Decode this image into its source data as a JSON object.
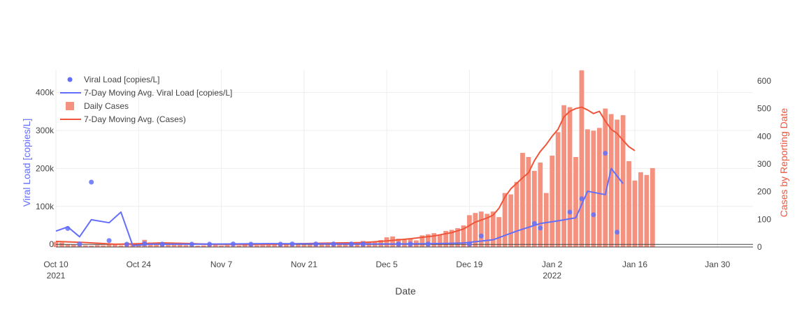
{
  "chart_data": {
    "type": "bar",
    "x_axis": {
      "title": "Date",
      "range": [
        "2021-10-10",
        "2022-02-05"
      ],
      "ticks": [
        {
          "date": "2021-10-10",
          "label": "Oct 10",
          "sublabel": "2021"
        },
        {
          "date": "2021-10-24",
          "label": "Oct 24",
          "sublabel": ""
        },
        {
          "date": "2021-11-07",
          "label": "Nov 7",
          "sublabel": ""
        },
        {
          "date": "2021-11-21",
          "label": "Nov 21",
          "sublabel": ""
        },
        {
          "date": "2021-12-05",
          "label": "Dec 5",
          "sublabel": ""
        },
        {
          "date": "2021-12-19",
          "label": "Dec 19",
          "sublabel": ""
        },
        {
          "date": "2022-01-02",
          "label": "Jan 2",
          "sublabel": "2022"
        },
        {
          "date": "2022-01-16",
          "label": "Jan 16",
          "sublabel": ""
        },
        {
          "date": "2022-01-30",
          "label": "Jan 30",
          "sublabel": ""
        }
      ]
    },
    "y_left": {
      "title": "Viral Load [copies/L]",
      "range": [
        -7000,
        460000
      ],
      "ticks": [
        {
          "value": 0,
          "label": "0"
        },
        {
          "value": 100000,
          "label": "100k"
        },
        {
          "value": 200000,
          "label": "200k"
        },
        {
          "value": 300000,
          "label": "300k"
        },
        {
          "value": 400000,
          "label": "400k"
        }
      ],
      "color": "#636efa"
    },
    "y_right": {
      "title": "Cases by Reporting Date",
      "range": [
        0,
        640
      ],
      "ticks": [
        {
          "value": 0,
          "label": "0"
        },
        {
          "value": 100,
          "label": "100"
        },
        {
          "value": 200,
          "label": "200"
        },
        {
          "value": 300,
          "label": "300"
        },
        {
          "value": 400,
          "label": "400"
        },
        {
          "value": 500,
          "label": "500"
        },
        {
          "value": 600,
          "label": "600"
        }
      ],
      "color": "#ef553b"
    },
    "grid": true,
    "legend_position": "top-left",
    "legend": [
      {
        "name": "Viral Load [copies/L]",
        "symbol": "dot",
        "color": "#636efa"
      },
      {
        "name": "7-Day Moving Avg. Viral Load [copies/L]",
        "symbol": "line",
        "color": "#636efa"
      },
      {
        "name": "Daily Cases",
        "symbol": "bar",
        "color": "#f4917f"
      },
      {
        "name": "7-Day Moving Avg. (Cases)",
        "symbol": "line",
        "color": "#ef553b"
      }
    ],
    "colors": {
      "viral": "#636efa",
      "cases_bar": "#f4917f",
      "cases_line": "#ef553b",
      "grid": "#eeeeee",
      "zeroline": "#444444"
    },
    "series": [
      {
        "name": "Daily Cases",
        "type": "bar",
        "axis": "right",
        "x_start": "2021-10-10",
        "values": [
          19,
          16,
          10,
          8,
          7,
          6,
          5,
          7,
          6,
          9,
          8,
          6,
          15,
          8,
          12,
          26,
          10,
          11,
          12,
          13,
          8,
          10,
          7,
          6,
          5,
          6,
          7,
          8,
          5,
          6,
          4,
          5,
          8,
          9,
          6,
          7,
          10,
          9,
          12,
          10,
          8,
          11,
          12,
          14,
          13,
          12,
          15,
          16,
          17,
          14,
          16,
          18,
          22,
          20,
          18,
          25,
          35,
          38,
          30,
          28,
          32,
          24,
          42,
          46,
          50,
          44,
          58,
          62,
          68,
          78,
          115,
          123,
          128,
          120,
          128,
          108,
          195,
          190,
          235,
          340,
          325,
          275,
          305,
          195,
          330,
          415,
          512,
          505,
          325,
          638,
          425,
          420,
          430,
          500,
          480,
          460,
          476,
          310,
          240,
          270,
          260,
          285
        ]
      },
      {
        "name": "7-Day Moving Avg. (Cases)",
        "type": "line",
        "axis": "right",
        "points": [
          [
            "2021-10-10",
            20
          ],
          [
            "2021-10-14",
            17
          ],
          [
            "2021-10-17",
            14
          ],
          [
            "2021-10-20",
            10
          ],
          [
            "2021-10-24",
            12
          ],
          [
            "2021-10-28",
            15
          ],
          [
            "2021-11-01",
            13
          ],
          [
            "2021-11-05",
            10
          ],
          [
            "2021-11-08",
            9
          ],
          [
            "2021-11-12",
            9
          ],
          [
            "2021-11-16",
            10
          ],
          [
            "2021-11-20",
            12
          ],
          [
            "2021-11-24",
            14
          ],
          [
            "2021-11-28",
            15
          ],
          [
            "2021-12-01",
            16
          ],
          [
            "2021-12-05",
            22
          ],
          [
            "2021-12-09",
            30
          ],
          [
            "2021-12-13",
            40
          ],
          [
            "2021-12-16",
            52
          ],
          [
            "2021-12-18",
            65
          ],
          [
            "2021-12-20",
            90
          ],
          [
            "2021-12-22",
            105
          ],
          [
            "2021-12-23",
            115
          ],
          [
            "2021-12-24",
            140
          ],
          [
            "2021-12-25",
            180
          ],
          [
            "2021-12-26",
            210
          ],
          [
            "2021-12-28",
            250
          ],
          [
            "2021-12-29",
            268
          ],
          [
            "2021-12-30",
            312
          ],
          [
            "2021-12-31",
            345
          ],
          [
            "2022-01-01",
            370
          ],
          [
            "2022-01-02",
            400
          ],
          [
            "2022-01-03",
            425
          ],
          [
            "2022-01-04",
            470
          ],
          [
            "2022-01-05",
            490
          ],
          [
            "2022-01-06",
            500
          ],
          [
            "2022-01-07",
            505
          ],
          [
            "2022-01-08",
            495
          ],
          [
            "2022-01-09",
            482
          ],
          [
            "2022-01-10",
            490
          ],
          [
            "2022-01-11",
            455
          ],
          [
            "2022-01-12",
            425
          ],
          [
            "2022-01-13",
            410
          ],
          [
            "2022-01-14",
            385
          ],
          [
            "2022-01-15",
            362
          ],
          [
            "2022-01-16",
            348
          ]
        ]
      },
      {
        "name": "Viral Load [copies/L]",
        "type": "scatter",
        "axis": "left",
        "points": [
          [
            "2021-10-12",
            42000
          ],
          [
            "2021-10-14",
            1000
          ],
          [
            "2021-10-16",
            164000
          ],
          [
            "2021-10-19",
            10000
          ],
          [
            "2021-10-22",
            500
          ],
          [
            "2021-10-25",
            2000
          ],
          [
            "2021-10-28",
            500
          ],
          [
            "2021-11-02",
            500
          ],
          [
            "2021-11-05",
            500
          ],
          [
            "2021-11-09",
            1000
          ],
          [
            "2021-11-12",
            500
          ],
          [
            "2021-11-17",
            500
          ],
          [
            "2021-11-19",
            1000
          ],
          [
            "2021-11-23",
            1000
          ],
          [
            "2021-11-26",
            1000
          ],
          [
            "2021-11-29",
            1000
          ],
          [
            "2021-12-01",
            1000
          ],
          [
            "2021-12-07",
            1000
          ],
          [
            "2021-12-09",
            1000
          ],
          [
            "2021-12-12",
            1000
          ],
          [
            "2021-12-19",
            1000
          ],
          [
            "2021-12-21",
            22000
          ],
          [
            "2021-12-30",
            55000
          ],
          [
            "2021-12-31",
            43000
          ],
          [
            "2022-01-05",
            85000
          ],
          [
            "2022-01-07",
            120000
          ],
          [
            "2022-01-09",
            78000
          ],
          [
            "2022-01-11",
            240000
          ],
          [
            "2022-01-13",
            32000
          ]
        ]
      },
      {
        "name": "7-Day Moving Avg. Viral Load [copies/L]",
        "type": "line",
        "axis": "left",
        "points": [
          [
            "2021-10-10",
            35000
          ],
          [
            "2021-10-12",
            46000
          ],
          [
            "2021-10-14",
            20000
          ],
          [
            "2021-10-16",
            65000
          ],
          [
            "2021-10-19",
            57000
          ],
          [
            "2021-10-21",
            85000
          ],
          [
            "2021-10-23",
            -3000
          ],
          [
            "2021-10-26",
            500
          ],
          [
            "2021-11-01",
            500
          ],
          [
            "2021-11-08",
            1000
          ],
          [
            "2021-11-15",
            2000
          ],
          [
            "2021-11-22",
            1500
          ],
          [
            "2021-11-29",
            1000
          ],
          [
            "2021-12-06",
            1000
          ],
          [
            "2021-12-13",
            2000
          ],
          [
            "2021-12-18",
            3500
          ],
          [
            "2021-12-23",
            12000
          ],
          [
            "2021-12-27",
            35000
          ],
          [
            "2021-12-31",
            55000
          ],
          [
            "2022-01-03",
            62000
          ],
          [
            "2022-01-06",
            70000
          ],
          [
            "2022-01-08",
            140000
          ],
          [
            "2022-01-11",
            131000
          ],
          [
            "2022-01-12",
            200000
          ],
          [
            "2022-01-14",
            160000
          ]
        ]
      }
    ]
  }
}
